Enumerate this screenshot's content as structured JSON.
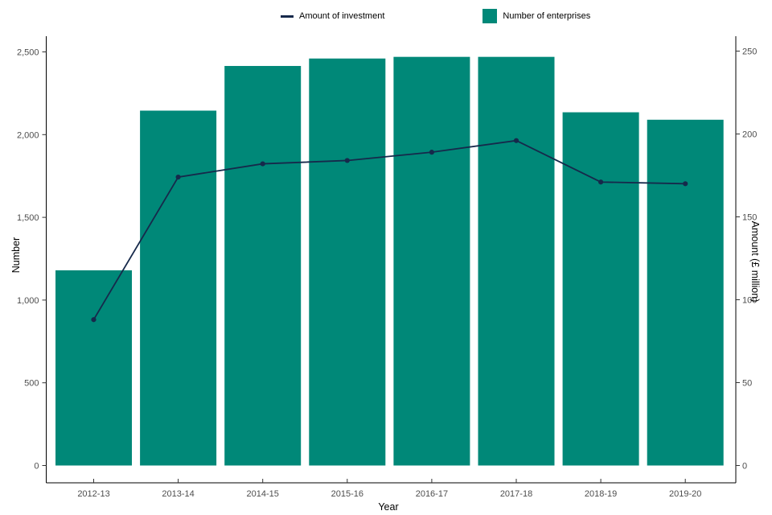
{
  "chart_data": {
    "type": "combo",
    "title": "",
    "categories": [
      "2012-13",
      "2013-14",
      "2014-15",
      "2015-16",
      "2016-17",
      "2017-18",
      "2018-19",
      "2019-20"
    ],
    "series": [
      {
        "name": "Number of enterprises",
        "type": "bar",
        "axis": "left",
        "color": "#008878",
        "values": [
          1180,
          2145,
          2415,
          2460,
          2470,
          2470,
          2135,
          2090
        ]
      },
      {
        "name": "Amount of investment",
        "type": "line",
        "axis": "right",
        "color": "#16294B",
        "values": [
          88,
          174,
          182,
          184,
          189,
          196,
          171,
          170
        ]
      }
    ],
    "x_axis": {
      "title": "Year"
    },
    "left_axis": {
      "title": "Number",
      "range": [
        0,
        2500
      ],
      "tick_values": [
        0,
        500,
        1000,
        1500,
        2000,
        2500
      ],
      "tick_labels": [
        "0",
        "500",
        "1,000",
        "1,500",
        "2,000",
        "2,500"
      ]
    },
    "right_axis": {
      "title": "Amount (£ million)",
      "range": [
        0,
        250
      ],
      "tick_values": [
        0,
        50,
        100,
        150,
        200,
        250
      ],
      "tick_labels": [
        "0",
        "50",
        "100",
        "150",
        "200",
        "250"
      ]
    },
    "legend_position": "top",
    "grid": "off",
    "background_color": "#ffffff",
    "axis_line_color": "#000000",
    "tick_color": "#333333",
    "tick_label_color": "#4d4d4d"
  }
}
